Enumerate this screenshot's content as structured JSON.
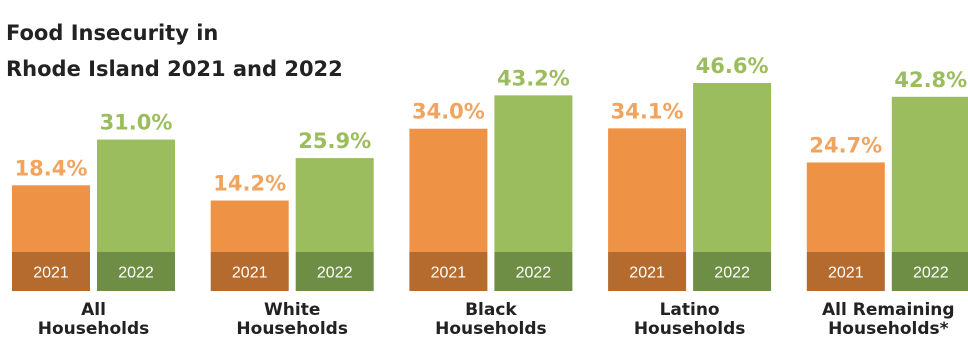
{
  "chart_data": {
    "type": "bar",
    "title_lines": [
      "Food Insecurity in",
      "Rhode Island 2021 and 2022"
    ],
    "categories": [
      [
        "All",
        "Households"
      ],
      [
        "White",
        "Households"
      ],
      [
        "Black",
        "Households"
      ],
      [
        "Latino",
        "Households"
      ],
      [
        "All Remaining",
        "Households*"
      ]
    ],
    "series": [
      {
        "name": "2021",
        "values": [
          18.4,
          14.2,
          34.0,
          34.1,
          24.7
        ],
        "labels": [
          "18.4%",
          "14.2%",
          "34.0%",
          "34.1%",
          "24.7%"
        ],
        "color": "#ee9245",
        "base_color": "#b56a2e",
        "label_color": "#f0a45e"
      },
      {
        "name": "2022",
        "values": [
          31.0,
          25.9,
          43.2,
          46.6,
          42.8
        ],
        "labels": [
          "31.0%",
          "25.9%",
          "43.2%",
          "46.6%",
          "42.8%"
        ],
        "color": "#9bbd5e",
        "base_color": "#6f8e45",
        "label_color": "#9bbd5e"
      }
    ],
    "ylim": [
      0,
      50
    ],
    "grid": false,
    "legend": "none"
  }
}
